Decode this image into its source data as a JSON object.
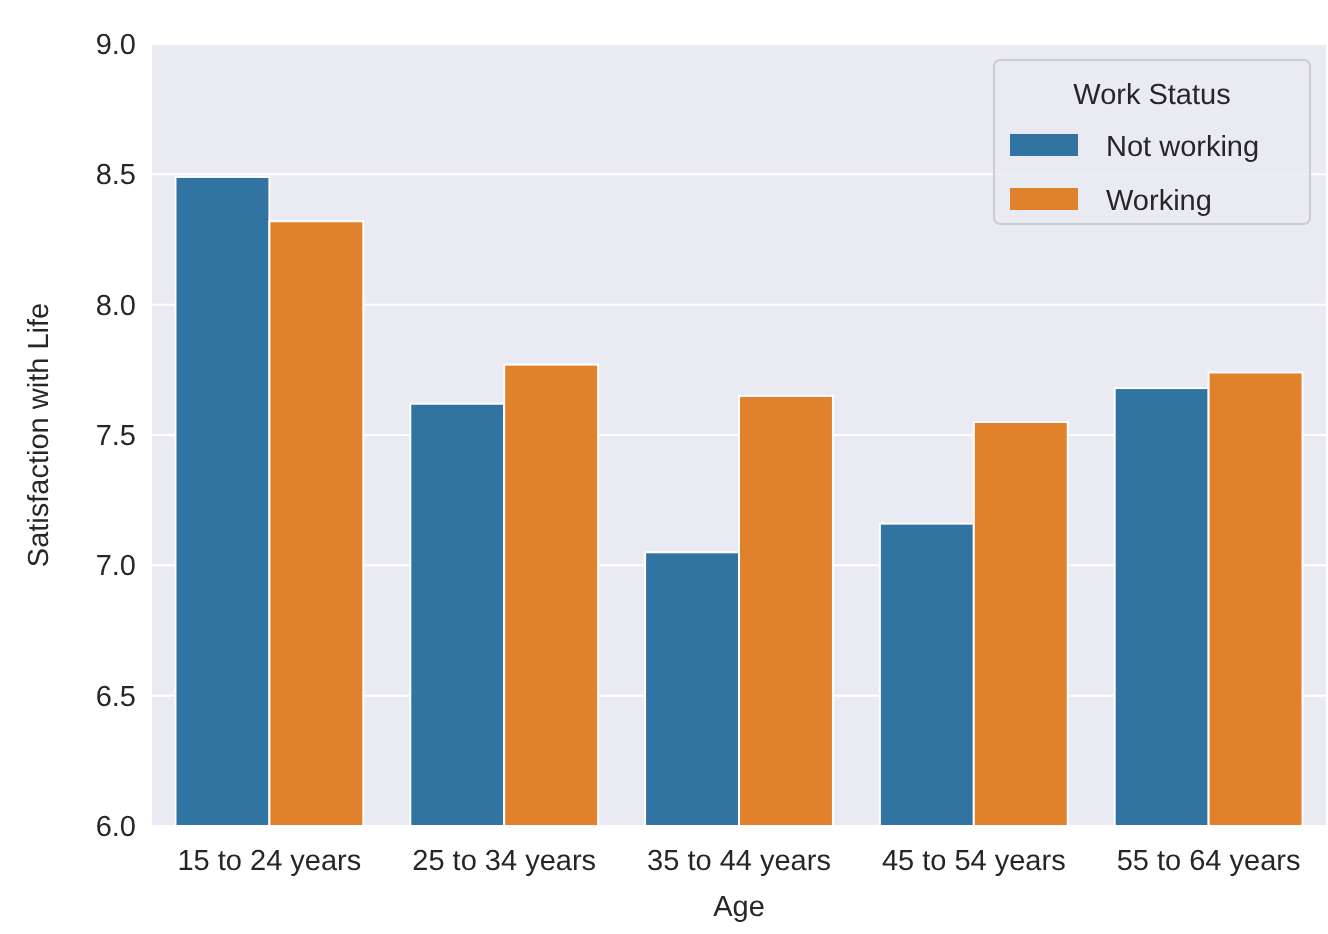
{
  "chart_data": {
    "type": "bar",
    "xlabel": "Age",
    "ylabel": "Satisfaction with Life",
    "legend_title": "Work Status",
    "categories": [
      "15 to 24 years",
      "25 to 34 years",
      "35 to 44 years",
      "45 to 54 years",
      "55 to 64 years"
    ],
    "series": [
      {
        "name": "Not working",
        "color": "#3274a1",
        "values": [
          8.49,
          7.62,
          7.05,
          7.16,
          7.68
        ]
      },
      {
        "name": "Working",
        "color": "#e1812c",
        "values": [
          8.32,
          7.77,
          7.65,
          7.55,
          7.74
        ]
      }
    ],
    "ylim": [
      6,
      9
    ],
    "yticks": [
      {
        "value": 6,
        "label": "6.0"
      },
      {
        "value": 6.5,
        "label": "6.5"
      },
      {
        "value": 7,
        "label": "7.0"
      },
      {
        "value": 7.5,
        "label": "7.5"
      },
      {
        "value": 8,
        "label": "8.0"
      },
      {
        "value": 8.5,
        "label": "8.5"
      },
      {
        "value": 9,
        "label": "9.0"
      }
    ],
    "grid": "y",
    "legend": "top right"
  }
}
